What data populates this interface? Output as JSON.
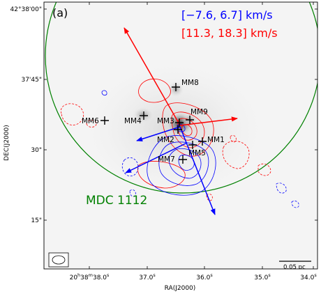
{
  "chart_data": {
    "type": "map",
    "panel_label": "(a)",
    "xlabel": "RA(J2000)",
    "ylabel": "DEC(J2000)",
    "x_ticks": [
      "20h38m38.0s",
      "37.0s",
      "36.0s",
      "35.0s",
      "34.0s"
    ],
    "y_ticks": [
      "42°38′00″",
      "37′45″",
      "30″",
      "15″"
    ],
    "x_tick_labels": [
      {
        "main": "20",
        "sup1": "h",
        "mid": "38",
        "sup2": "m",
        "sec": "38.0",
        "sup3": "s"
      },
      {
        "main": "37.0",
        "sup": "s"
      },
      {
        "main": "36.0",
        "sup": "s"
      },
      {
        "main": "35.0",
        "sup": "s"
      },
      {
        "main": "34.0",
        "sup": "s"
      }
    ],
    "y_tick_labels": [
      {
        "text": "42°38′00″",
        "display": "42°38'00\""
      },
      {
        "text": "37′45″",
        "display": "37'45\""
      },
      {
        "text": "30″",
        "display": "30\""
      },
      {
        "text": "15″",
        "display": "15\""
      }
    ],
    "velocity_ranges": [
      {
        "text": "[−7.6, 6.7] km/s",
        "color": "#0000ff",
        "component": "blueshifted"
      },
      {
        "text": "[11.3, 18.3] km/s",
        "color": "#ff0000",
        "component": "redshifted"
      }
    ],
    "region_label": {
      "text": "MDC 1112",
      "color": "#008000"
    },
    "sources": [
      {
        "name": "MM1"
      },
      {
        "name": "MM2"
      },
      {
        "name": "MM3"
      },
      {
        "name": "MM4"
      },
      {
        "name": "MM5"
      },
      {
        "name": "MM6"
      },
      {
        "name": "MM7"
      },
      {
        "name": "MM8"
      },
      {
        "name": "MM9"
      }
    ],
    "scale_bar": {
      "text": "0.05 pc"
    },
    "colors": {
      "blue": "#0000ff",
      "red": "#ff0000",
      "green": "#008000",
      "background": "#f4f4f4"
    }
  }
}
